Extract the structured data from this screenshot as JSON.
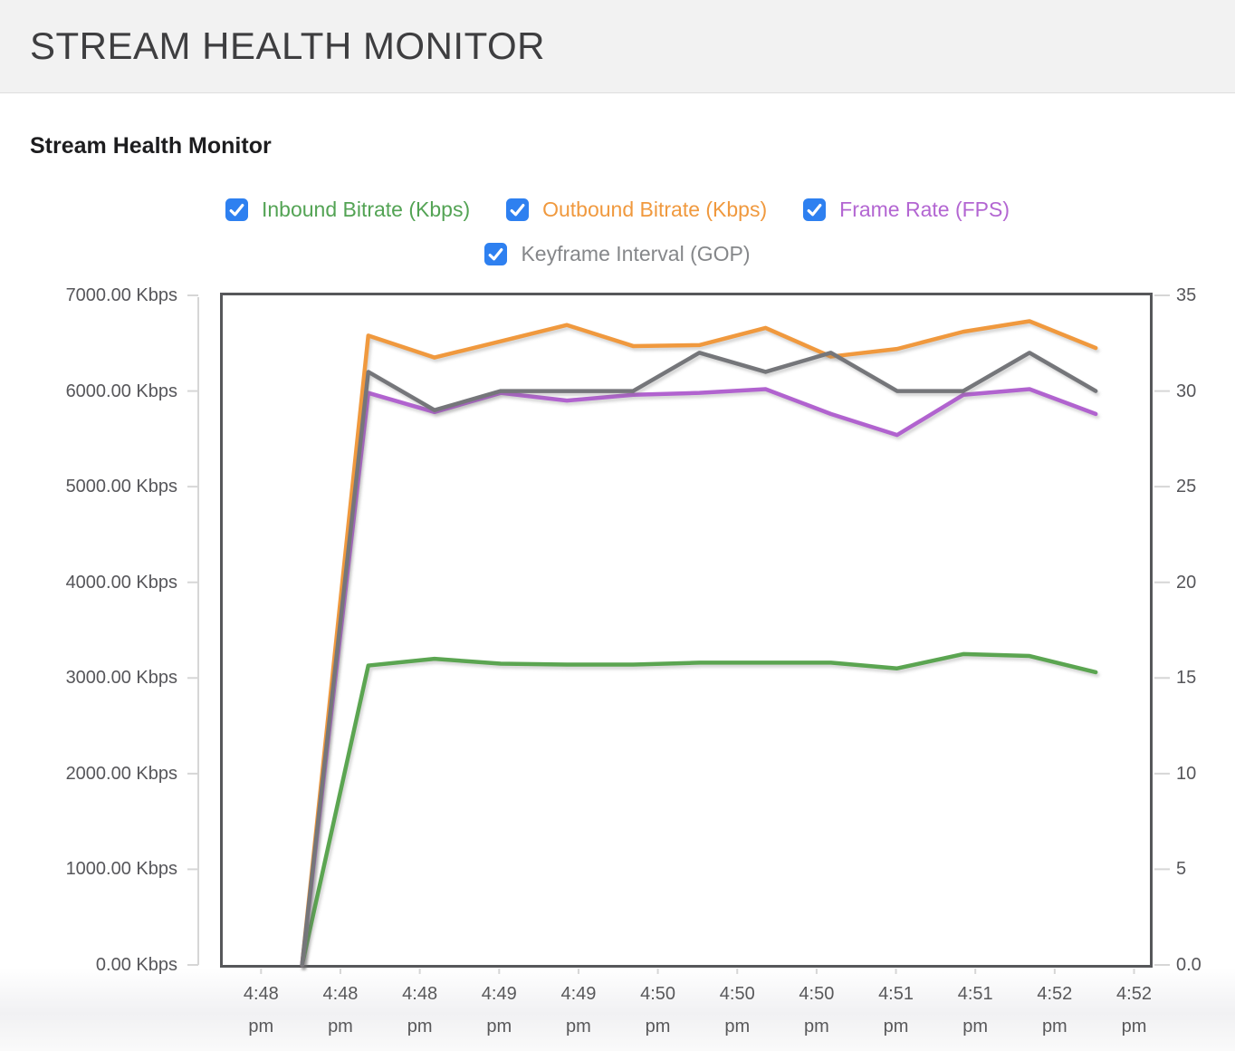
{
  "header": {
    "title": "STREAM HEALTH MONITOR"
  },
  "section": {
    "heading": "Stream Health Monitor"
  },
  "legend": {
    "checkbox_color": "#2e80f0",
    "rows": [
      [
        0,
        1,
        2
      ],
      [
        3
      ]
    ],
    "items": [
      {
        "id": "inbound-bitrate",
        "label": "Inbound Bitrate (Kbps)",
        "color": "#53a354",
        "checked": true
      },
      {
        "id": "outbound-bitrate",
        "label": "Outbound Bitrate (Kbps)",
        "color": "#f0993e",
        "checked": true
      },
      {
        "id": "frame-rate",
        "label": "Frame Rate (FPS)",
        "color": "#b366d2",
        "checked": true
      },
      {
        "id": "keyframe-interval",
        "label": "Keyframe Interval (GOP)",
        "color": "#85878a",
        "checked": true
      }
    ]
  },
  "chart_data": {
    "type": "line",
    "title": "Stream Health Monitor",
    "legend_position": "top",
    "grid": false,
    "plot_border_color": "#56575a",
    "tick_color": "#d6d6d6",
    "left_axis": {
      "min": 0,
      "max": 7000,
      "unit": "Kbps",
      "tick_values": [
        7000,
        6000,
        5000,
        4000,
        3000,
        2000,
        1000,
        0
      ],
      "tick_labels": [
        "7000.00 Kbps",
        "6000.00 Kbps",
        "5000.00 Kbps",
        "4000.00 Kbps",
        "3000.00 Kbps",
        "2000.00 Kbps",
        "1000.00 Kbps",
        "0.00 Kbps"
      ]
    },
    "right_axis": {
      "min": 0,
      "max": 35,
      "tick_values": [
        35,
        30,
        25,
        20,
        15,
        10,
        5,
        0
      ],
      "tick_labels": [
        "35",
        "30",
        "25",
        "20",
        "15",
        "10",
        "5",
        "0.0"
      ]
    },
    "x_axis": {
      "ticks": [
        {
          "time": "4:48",
          "ampm": "pm",
          "frac": 0.044
        },
        {
          "time": "4:48",
          "ampm": "pm",
          "frac": 0.1291
        },
        {
          "time": "4:48",
          "ampm": "pm",
          "frac": 0.2142
        },
        {
          "time": "4:49",
          "ampm": "pm",
          "frac": 0.2993
        },
        {
          "time": "4:49",
          "ampm": "pm",
          "frac": 0.3844
        },
        {
          "time": "4:50",
          "ampm": "pm",
          "frac": 0.4695
        },
        {
          "time": "4:50",
          "ampm": "pm",
          "frac": 0.5546
        },
        {
          "time": "4:50",
          "ampm": "pm",
          "frac": 0.6397
        },
        {
          "time": "4:51",
          "ampm": "pm",
          "frac": 0.7248
        },
        {
          "time": "4:51",
          "ampm": "pm",
          "frac": 0.8099
        },
        {
          "time": "4:52",
          "ampm": "pm",
          "frac": 0.895
        },
        {
          "time": "4:52",
          "ampm": "pm",
          "frac": 0.9801
        }
      ]
    },
    "point_fracs": [
      0.088,
      0.159,
      0.23,
      0.301,
      0.372,
      0.443,
      0.514,
      0.585,
      0.655,
      0.726,
      0.797,
      0.868,
      0.939
    ],
    "series": [
      {
        "id": "inbound-bitrate",
        "name": "Inbound Bitrate (Kbps)",
        "axis": "left",
        "color": "#5ba551",
        "values": [
          0,
          3130,
          3200,
          3150,
          3140,
          3140,
          3160,
          3160,
          3160,
          3100,
          3250,
          3230,
          3060
        ]
      },
      {
        "id": "outbound-bitrate",
        "name": "Outbound Bitrate (Kbps)",
        "axis": "left",
        "color": "#f0993e",
        "values": [
          0,
          6580,
          6350,
          6520,
          6690,
          6470,
          6480,
          6660,
          6360,
          6440,
          6620,
          6730,
          6450
        ]
      },
      {
        "id": "frame-rate",
        "name": "Frame Rate (FPS)",
        "axis": "right",
        "color": "#b163cf",
        "values": [
          0,
          29.9,
          28.9,
          29.9,
          29.5,
          29.8,
          29.9,
          30.1,
          28.8,
          27.7,
          29.8,
          30.1,
          28.8
        ]
      },
      {
        "id": "keyframe-interval",
        "name": "Keyframe Interval (GOP)",
        "axis": "right",
        "color": "#75767a",
        "values": [
          0,
          31,
          29,
          30,
          30,
          30,
          32,
          31,
          32,
          30,
          30,
          32,
          30
        ]
      }
    ]
  }
}
